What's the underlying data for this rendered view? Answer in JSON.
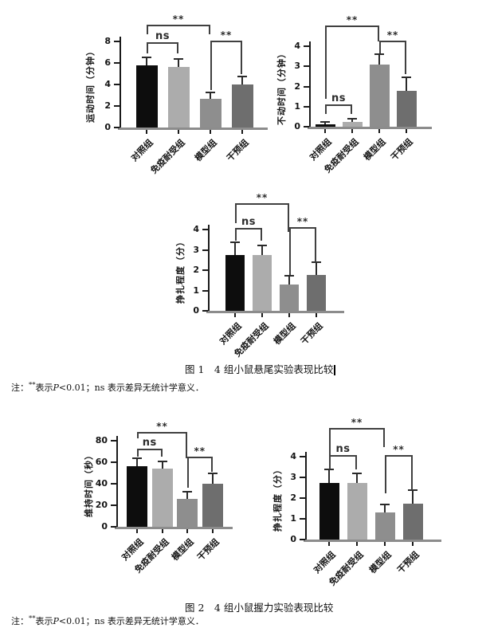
{
  "captions": {
    "fig1": "图 1　4 组小鼠悬尾实验表现比较",
    "fig2": "图 2　4 组小鼠握力实验表现比较"
  },
  "note": {
    "prefix": "注：",
    "sig": "**",
    "mid": "表示",
    "p": "P",
    "rest": "<0.01；ns 表示差异无统计学意义．"
  },
  "colors": {
    "bar_fills": [
      "#0d0d0d",
      "#acacac",
      "#8e8e8e",
      "#6e6e6e"
    ],
    "axis": "#1a1a1a",
    "baseline": "#8c8c8c",
    "bracket": "#404040"
  },
  "chart_data": [
    {
      "type": "bar",
      "title": "",
      "ylabel": "运动时间（分钟）",
      "ylim": [
        0,
        8
      ],
      "yticks": [
        0,
        2,
        4,
        6,
        8
      ],
      "grid": false,
      "legend": null,
      "categories": [
        "对照组",
        "免疫耐受组",
        "模型组",
        "干预组"
      ],
      "values": [
        5.75,
        5.6,
        2.65,
        4.0
      ],
      "errors": [
        0.7,
        0.7,
        0.5,
        0.65
      ],
      "significance": [
        {
          "from": 0,
          "to": 1,
          "label": "ns",
          "level": 7.8,
          "drop_from": 0.9,
          "drop_to": 0.9
        },
        {
          "from": 0,
          "to": 2,
          "label": "**",
          "level": 9.4,
          "drop_from": 0.7,
          "drop_to": 0.7
        },
        {
          "from": 2,
          "to": 3,
          "label": "**",
          "level": 7.9,
          "drop_from": 4.4,
          "drop_to": 2.9
        }
      ]
    },
    {
      "type": "bar",
      "title": "",
      "ylabel": "不动时间（分钟）",
      "ylim": [
        0,
        4
      ],
      "yticks": [
        0,
        1,
        2,
        3,
        4
      ],
      "grid": false,
      "legend": null,
      "categories": [
        "对照组",
        "免疫耐受组",
        "模型组",
        "干预组"
      ],
      "values": [
        0.12,
        0.22,
        3.1,
        1.8
      ],
      "errors": [
        0.06,
        0.12,
        0.45,
        0.6
      ],
      "significance": [
        {
          "from": 0,
          "to": 1,
          "label": "ns",
          "level": 1.05,
          "drop_from": 0.4,
          "drop_to": 0.4
        },
        {
          "from": 0,
          "to": 2,
          "label": "**",
          "level": 4.95,
          "drop_from": 3.55,
          "drop_to": 0.7
        },
        {
          "from": 2,
          "to": 3,
          "label": "**",
          "level": 4.2,
          "drop_from": 0.55,
          "drop_to": 1.6
        }
      ]
    },
    {
      "type": "bar",
      "title": "",
      "ylabel": "挣扎程度（分）",
      "ylim": [
        0,
        4
      ],
      "yticks": [
        0,
        1,
        2,
        3,
        4
      ],
      "grid": false,
      "legend": null,
      "categories": [
        "对照组",
        "免疫耐受组",
        "模型组",
        "干预组"
      ],
      "values": [
        2.75,
        2.75,
        1.3,
        1.78
      ],
      "errors": [
        0.6,
        0.42,
        0.4,
        0.57
      ],
      "significance": [
        {
          "from": 0,
          "to": 1,
          "label": "ns",
          "level": 4.0,
          "drop_from": 0.55,
          "drop_to": 0.55
        },
        {
          "from": 0,
          "to": 2,
          "label": "**",
          "level": 5.2,
          "drop_from": 0.9,
          "drop_to": 1.3
        },
        {
          "from": 2,
          "to": 3,
          "label": "**",
          "level": 4.05,
          "drop_from": 2.3,
          "drop_to": 1.65
        }
      ]
    },
    {
      "type": "bar",
      "title": "",
      "ylabel": "维持时间（秒）",
      "ylim": [
        0,
        80
      ],
      "yticks": [
        0,
        20,
        40,
        60,
        80
      ],
      "grid": false,
      "legend": null,
      "categories": [
        "对照组",
        "免疫耐受组",
        "模型组",
        "干预组"
      ],
      "values": [
        56,
        54,
        26,
        40
      ],
      "errors": [
        7,
        6,
        6,
        9
      ],
      "significance": [
        {
          "from": 0,
          "to": 1,
          "label": "ns",
          "level": 71,
          "drop_from": 6,
          "drop_to": 6
        },
        {
          "from": 0,
          "to": 2,
          "label": "**",
          "level": 87,
          "drop_from": 5,
          "drop_to": 23
        },
        {
          "from": 2,
          "to": 3,
          "label": "**",
          "level": 64,
          "drop_from": 28,
          "drop_to": 13
        }
      ]
    },
    {
      "type": "bar",
      "title": "",
      "ylabel": "挣扎程度（分）",
      "ylim": [
        0,
        4
      ],
      "yticks": [
        0,
        1,
        2,
        3,
        4
      ],
      "grid": false,
      "legend": null,
      "categories": [
        "对照组",
        "免疫耐受组",
        "模型组",
        "干预组"
      ],
      "values": [
        2.75,
        2.75,
        1.3,
        1.75
      ],
      "errors": [
        0.58,
        0.4,
        0.35,
        0.6
      ],
      "significance": [
        {
          "from": 0,
          "to": 1,
          "label": "ns",
          "level": 4.0,
          "drop_from": 0.6,
          "drop_to": 0.6
        },
        {
          "from": 0,
          "to": 2,
          "label": "**",
          "level": 5.3,
          "drop_from": 1.3,
          "drop_to": 0.85
        },
        {
          "from": 2,
          "to": 3,
          "label": "**",
          "level": 4.0,
          "drop_from": 1.75,
          "drop_to": 1.6
        }
      ]
    }
  ]
}
